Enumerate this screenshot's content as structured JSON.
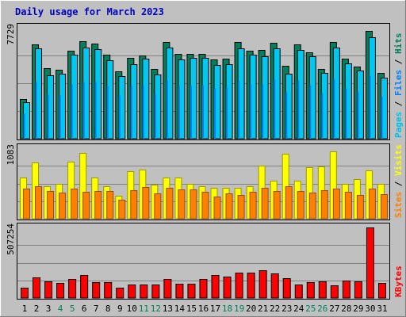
{
  "chart_data": {
    "type": "bar",
    "title": "Daily usage for March 2023",
    "categories": [
      "1",
      "2",
      "3",
      "4",
      "5",
      "6",
      "7",
      "8",
      "9",
      "10",
      "11",
      "12",
      "13",
      "14",
      "15",
      "16",
      "17",
      "18",
      "19",
      "20",
      "21",
      "22",
      "23",
      "24",
      "25",
      "26",
      "27",
      "28",
      "29",
      "30",
      "31"
    ],
    "weekend_days": [
      "4",
      "5",
      "11",
      "12",
      "18",
      "19",
      "25",
      "26"
    ],
    "panels": [
      {
        "name": "hits-files-pages",
        "max_label": "7729",
        "ymax": 7729,
        "side_label": [
          "Pages",
          "Files",
          "Hits"
        ],
        "side_colors": [
          "#00c0e8",
          "#0080ff",
          "#00805c"
        ],
        "series": [
          {
            "name": "Hits",
            "color": "#00805c",
            "values": [
              2760,
              6550,
              4920,
              4810,
              6150,
              6780,
              6610,
              5870,
              4690,
              5640,
              5820,
              4860,
              6710,
              5920,
              5880,
              5930,
              5540,
              5600,
              6710,
              6150,
              6180,
              6690,
              5080,
              6550,
              6040,
              4880,
              6760,
              5550,
              5020,
              7500,
              4580
            ]
          },
          {
            "name": "Files",
            "color": "#00c8f0",
            "values": [
              2520,
              6280,
              4400,
              4530,
              5830,
              6360,
              6260,
              5450,
              4350,
              5200,
              5590,
              4470,
              6360,
              5530,
              5620,
              5620,
              5110,
              5190,
              6310,
              5830,
              5720,
              6290,
              4500,
              6180,
              5720,
              4590,
              6330,
              5240,
              4750,
              7070,
              4260
            ]
          },
          {
            "name": "Pages",
            "color": "#0080ff",
            "values": [
              1780,
              3980,
              3100,
              3030,
              3820,
              3990,
              3980,
              3680,
              3010,
              3680,
              3780,
              3130,
              4070,
              3700,
              3690,
              3740,
              3550,
              3580,
              4020,
              3800,
              3800,
              4140,
              3260,
              4070,
              3780,
              3190,
              4180,
              3520,
              3290,
              4390,
              3000
            ]
          }
        ]
      },
      {
        "name": "visits-sites",
        "max_label": "1083",
        "ymax": 1083,
        "side_label": [
          "Sites",
          "Visits"
        ],
        "side_colors": [
          "#ff8000",
          "#ffff00"
        ],
        "series": [
          {
            "name": "Visits",
            "color": "#ffff00",
            "values": [
              630,
              870,
              500,
              540,
              880,
              1010,
              630,
              500,
              350,
              730,
              750,
              520,
              630,
              630,
              540,
              500,
              480,
              480,
              480,
              500,
              820,
              580,
              1000,
              590,
              790,
              800,
              1040,
              540,
              610,
              740,
              540
            ]
          },
          {
            "name": "Sites",
            "color": "#ff8000",
            "values": [
              460,
              500,
              430,
              400,
              460,
              410,
              430,
              430,
              290,
              440,
              490,
              390,
              480,
              450,
              450,
              410,
              340,
              390,
              360,
              410,
              470,
              420,
              500,
              420,
              400,
              440,
              460,
              410,
              360,
              460,
              380
            ]
          }
        ]
      },
      {
        "name": "kbytes",
        "max_label": "507254",
        "ymax": 507254,
        "side_label": [
          "KBytes"
        ],
        "side_colors": [
          "#ff0000"
        ],
        "series": [
          {
            "name": "KBytes",
            "color": "#ff0000",
            "values": [
              75000,
              150000,
              120000,
              111000,
              135000,
              165000,
              113000,
              114000,
              74000,
              96000,
              96000,
              96000,
              134000,
              103000,
              101000,
              138000,
              166000,
              155000,
              180000,
              181000,
              198000,
              177000,
              140000,
              96000,
              112000,
              119000,
              93000,
              123000,
              120000,
              520000,
              107000
            ]
          }
        ]
      }
    ]
  }
}
